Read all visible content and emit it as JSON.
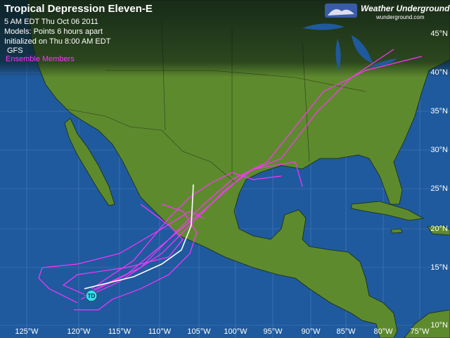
{
  "header": {
    "title": "Tropical Depression Eleven-E",
    "lines": [
      "5 AM EDT Thu Oct 06 2011",
      "Models:  Points 6 hours apart",
      "Initialized on Thu 8:00 AM EDT"
    ]
  },
  "legend": [
    "GFS",
    "Ensemble Members"
  ],
  "logo": {
    "name": "Weather Underground®",
    "url": "wunderground.com"
  },
  "storm_marker": "TD",
  "lat_labels": [
    "45°N",
    "40°N",
    "35°N",
    "30°N",
    "25°N",
    "20°N",
    "15°N",
    "10°N"
  ],
  "lon_labels": [
    "125°W",
    "120°W",
    "115°W",
    "110°W",
    "105°W",
    "100°W",
    "95°W",
    "90°W",
    "85°W",
    "80°W",
    "75°W"
  ]
}
